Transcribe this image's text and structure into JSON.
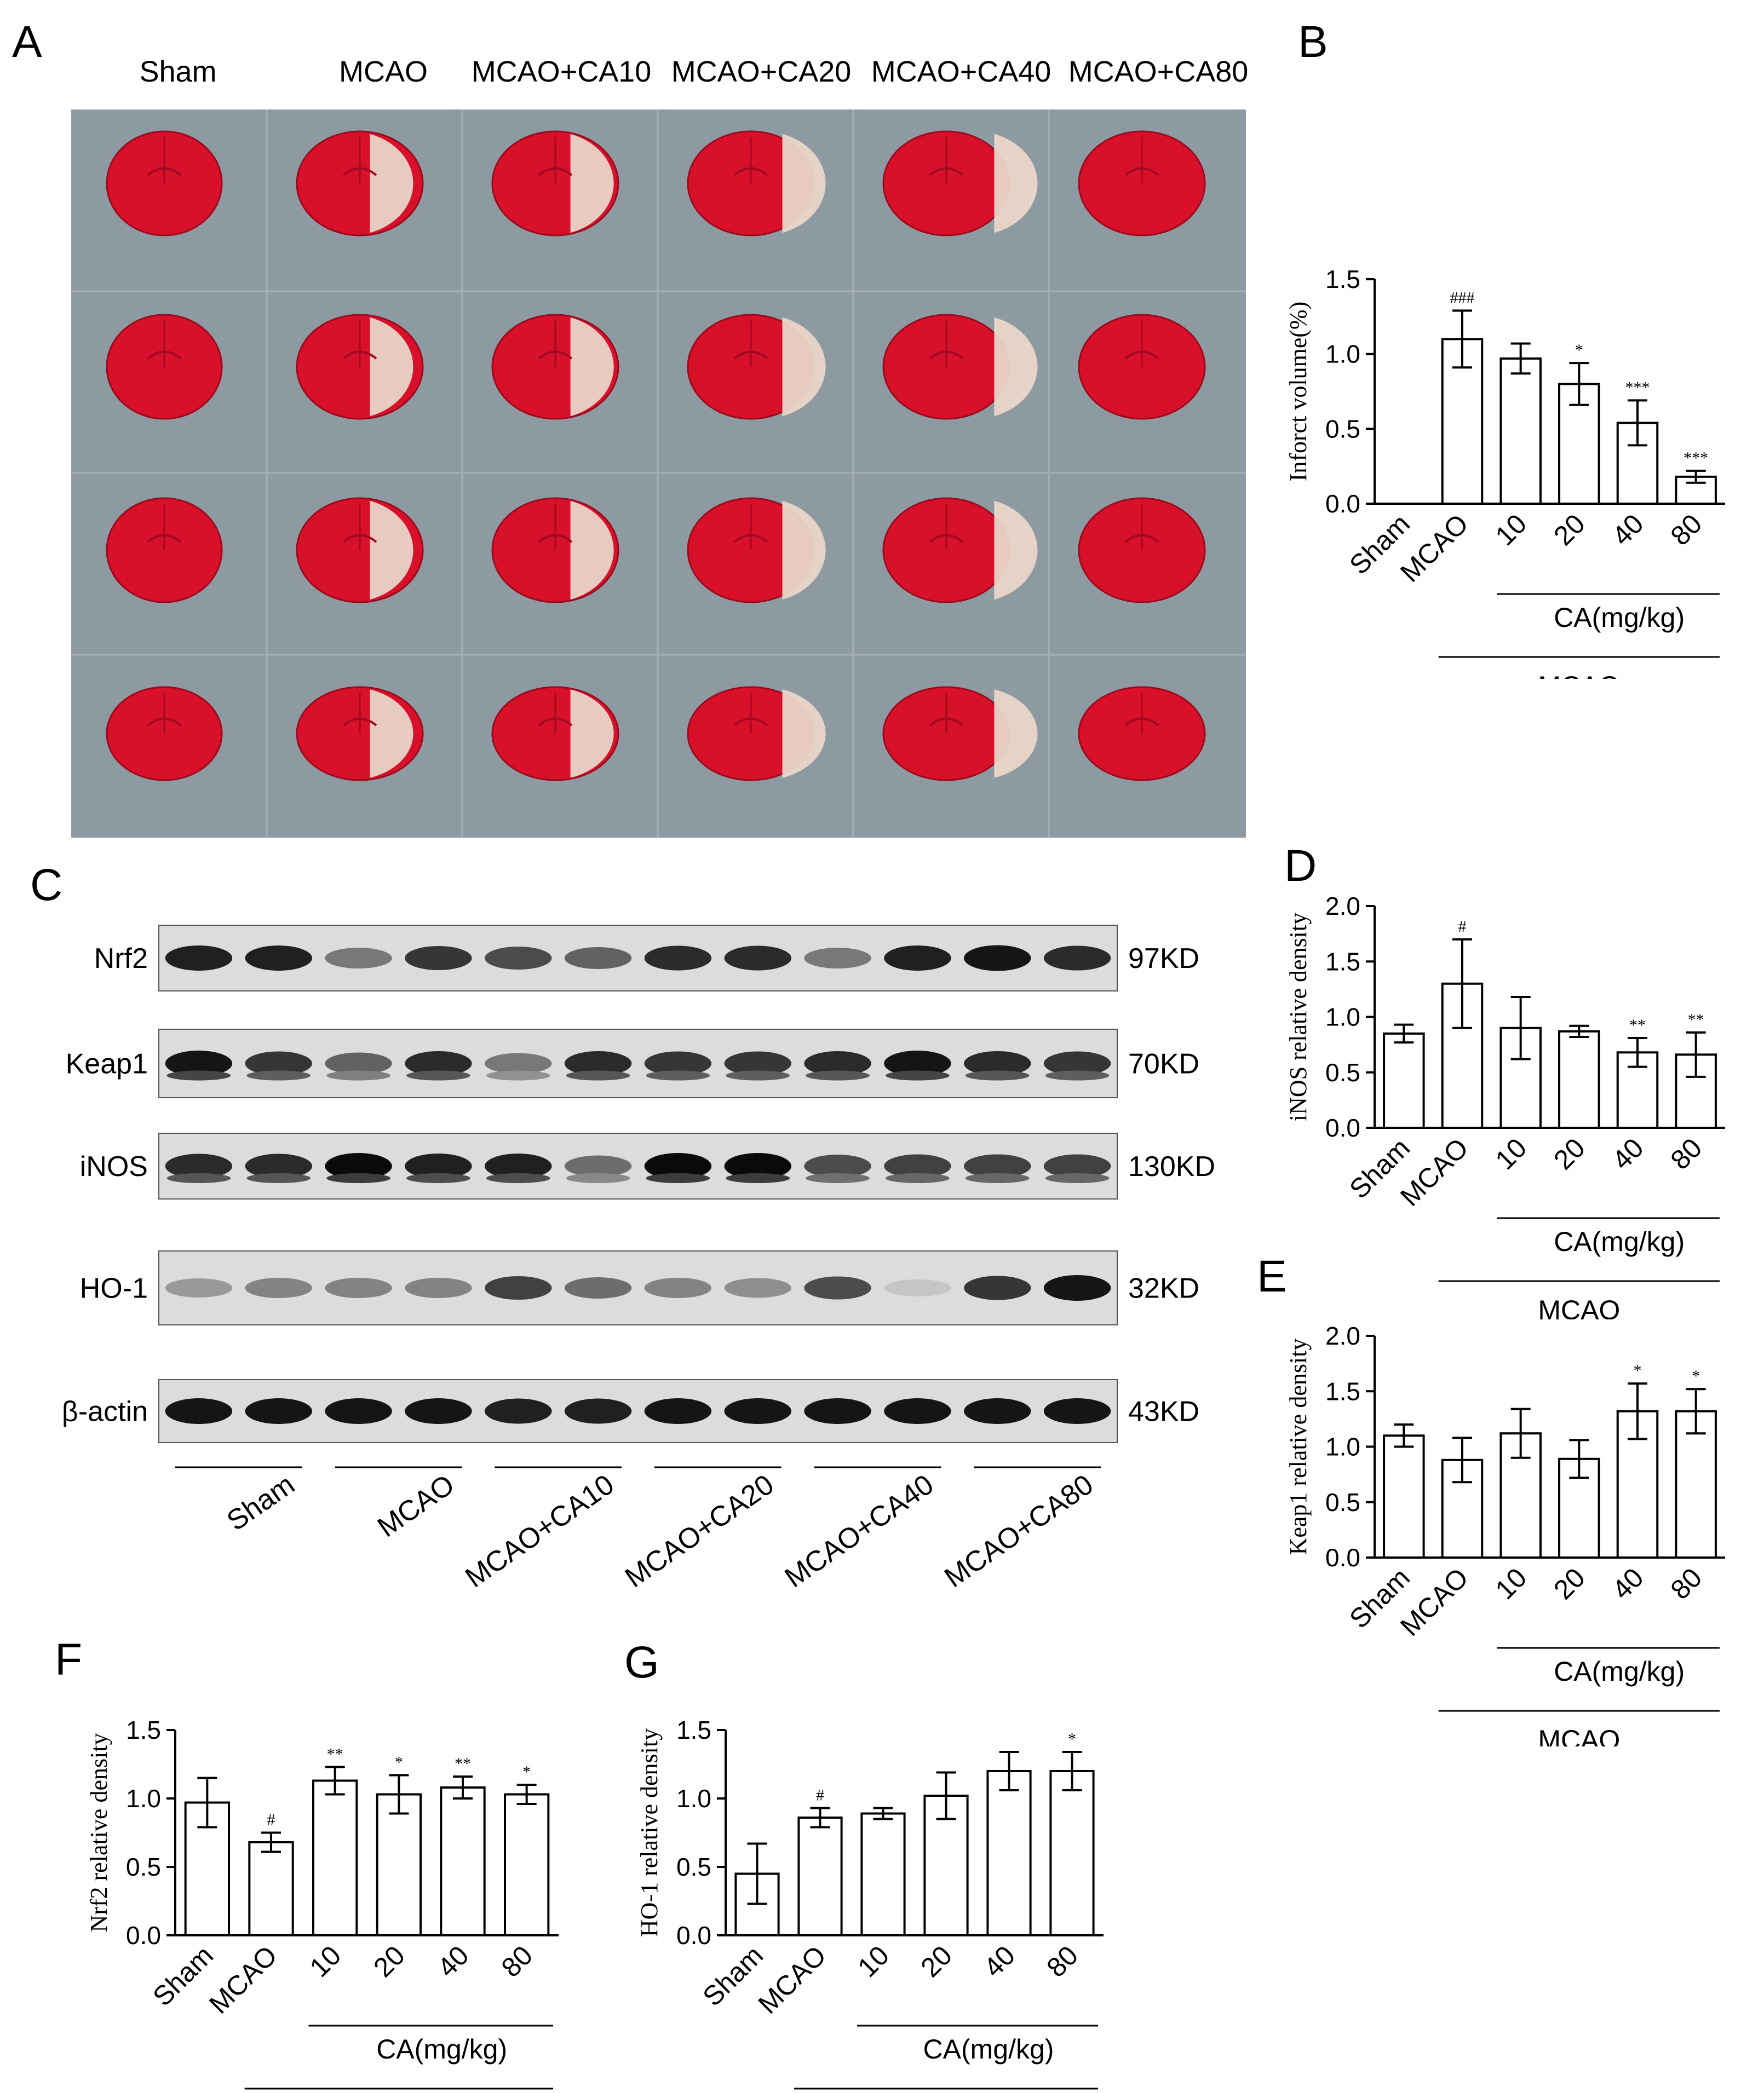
{
  "colors": {
    "tissue_red": "#d8102a",
    "tissue_pale": "#e9d6c8",
    "photo_bg": "#8e9aa2",
    "band": "#0d0d0d",
    "blot_bg": "#d9d9d9"
  },
  "panelA": {
    "letter": "A",
    "headers": [
      "Sham",
      "MCAO",
      "MCAO+CA10",
      "MCAO+CA20",
      "MCAO+CA40",
      "MCAO+CA80"
    ]
  },
  "panelC": {
    "letter": "C",
    "rows": [
      {
        "protein": "Nrf2",
        "size": "97KD"
      },
      {
        "protein": "Keap1",
        "size": "70KD"
      },
      {
        "protein": "iNOS",
        "size": "130KD"
      },
      {
        "protein": "HO-1",
        "size": "32KD"
      },
      {
        "protein": "β-actin",
        "size": "43KD"
      }
    ],
    "groups": [
      "Sham",
      "MCAO",
      "MCAO+CA10",
      "MCAO+CA20",
      "MCAO+CA40",
      "MCAO+CA80"
    ]
  },
  "bracket": {
    "dose_label": "CA(mg/kg)",
    "model_label": "MCAO"
  },
  "chart_data": [
    {
      "panel": "B",
      "type": "bar",
      "ylabel": "Inforct volume(%)",
      "categories": [
        "Sham",
        "MCAO",
        "10",
        "20",
        "40",
        "80"
      ],
      "values": [
        0,
        1.1,
        0.97,
        0.8,
        0.54,
        0.18
      ],
      "errors": [
        0,
        0.19,
        0.1,
        0.14,
        0.15,
        0.04
      ],
      "significance": [
        "",
        "###",
        "",
        "*",
        "***",
        "***"
      ],
      "ylim": [
        0,
        1.5
      ],
      "yticks": [
        "0.0",
        "0.5",
        "1.0",
        "1.5"
      ]
    },
    {
      "panel": "D",
      "type": "bar",
      "ylabel": "iNOS relative density",
      "categories": [
        "Sham",
        "MCAO",
        "10",
        "20",
        "40",
        "80"
      ],
      "values": [
        0.85,
        1.3,
        0.9,
        0.87,
        0.68,
        0.66
      ],
      "errors": [
        0.08,
        0.4,
        0.28,
        0.05,
        0.13,
        0.2
      ],
      "significance": [
        "",
        "#",
        "",
        "",
        "**",
        "**"
      ],
      "ylim": [
        0,
        2.0
      ],
      "yticks": [
        "0.0",
        "0.5",
        "1.0",
        "1.5",
        "2.0"
      ]
    },
    {
      "panel": "E",
      "type": "bar",
      "ylabel": "Keap1 relative density",
      "categories": [
        "Sham",
        "MCAO",
        "10",
        "20",
        "40",
        "80"
      ],
      "values": [
        1.1,
        0.88,
        1.12,
        0.89,
        1.32,
        1.32
      ],
      "errors": [
        0.1,
        0.2,
        0.22,
        0.17,
        0.25,
        0.2
      ],
      "significance": [
        "",
        "",
        "",
        "",
        "*",
        "*"
      ],
      "ylim": [
        0,
        2.0
      ],
      "yticks": [
        "0.0",
        "0.5",
        "1.0",
        "1.5",
        "2.0"
      ]
    },
    {
      "panel": "F",
      "type": "bar",
      "ylabel": "Nrf2 relative density",
      "categories": [
        "Sham",
        "MCAO",
        "10",
        "20",
        "40",
        "80"
      ],
      "values": [
        0.97,
        0.68,
        1.13,
        1.03,
        1.08,
        1.03
      ],
      "errors": [
        0.18,
        0.07,
        0.1,
        0.14,
        0.08,
        0.07
      ],
      "significance": [
        "",
        "#",
        "**",
        "*",
        "**",
        "*"
      ],
      "ylim": [
        0,
        1.5
      ],
      "yticks": [
        "0.0",
        "0.5",
        "1.0",
        "1.5"
      ]
    },
    {
      "panel": "G",
      "type": "bar",
      "ylabel": "HO-1 relative density",
      "categories": [
        "Sham",
        "MCAO",
        "10",
        "20",
        "40",
        "80"
      ],
      "values": [
        0.45,
        0.86,
        0.89,
        1.02,
        1.2,
        1.2
      ],
      "errors": [
        0.22,
        0.07,
        0.04,
        0.17,
        0.14,
        0.14
      ],
      "significance": [
        "",
        "#",
        "",
        "",
        "",
        "*"
      ],
      "ylim": [
        0,
        1.5
      ],
      "yticks": [
        "0.0",
        "0.5",
        "1.0",
        "1.5"
      ]
    }
  ]
}
